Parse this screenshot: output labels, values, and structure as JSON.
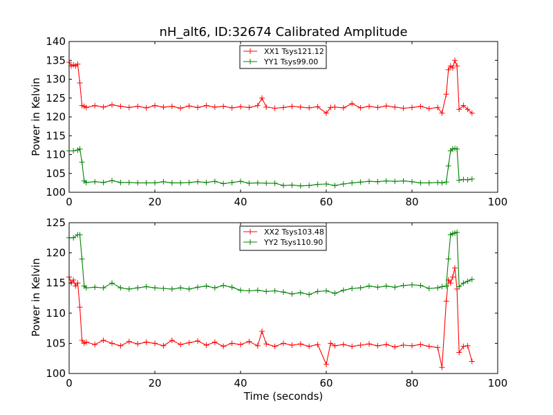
{
  "chart_data": [
    {
      "type": "line",
      "title": "nH_alt6, ID:32674 Calibrated Amplitude",
      "xlabel": "",
      "ylabel": "Power in Kelvin",
      "xlim": [
        0,
        100
      ],
      "ylim": [
        100,
        140
      ],
      "x_ticks": [
        "0",
        "20",
        "40",
        "60",
        "80",
        "100"
      ],
      "y_ticks": [
        "100",
        "105",
        "110",
        "115",
        "120",
        "125",
        "130",
        "135",
        "140"
      ],
      "legend_position": "top-center",
      "marker": "+",
      "series": [
        {
          "name": "XX1 Tsys121.12",
          "color": "#ff0000",
          "x": [
            0,
            0.5,
            1,
            1.5,
            2,
            2.5,
            3,
            3.5,
            4,
            6,
            8,
            10,
            12,
            14,
            16,
            18,
            20,
            22,
            24,
            26,
            28,
            30,
            32,
            34,
            36,
            38,
            40,
            42,
            44,
            45,
            46,
            48,
            50,
            52,
            54,
            56,
            58,
            60,
            61,
            62,
            64,
            66,
            68,
            70,
            72,
            74,
            76,
            78,
            80,
            82,
            84,
            86,
            87,
            88,
            88.5,
            89,
            89.5,
            90,
            90.5,
            91,
            92,
            93,
            94
          ],
          "y": [
            134.5,
            133.5,
            133.8,
            133.5,
            134,
            129,
            123,
            122.8,
            122.5,
            123,
            122.6,
            123.2,
            122.8,
            122.5,
            122.8,
            122.4,
            123,
            122.6,
            122.8,
            122.3,
            122.9,
            122.5,
            123,
            122.6,
            122.8,
            122.4,
            122.7,
            122.5,
            123,
            125,
            122.6,
            122.3,
            122.5,
            122.8,
            122.6,
            122.4,
            122.7,
            121,
            122.5,
            122.6,
            122.4,
            123.5,
            122.4,
            122.8,
            122.5,
            122.9,
            122.6,
            122.3,
            122.5,
            122.8,
            122.2,
            122.5,
            121,
            126,
            132.5,
            133.5,
            133,
            135,
            133.5,
            122,
            123,
            122,
            121
          ]
        },
        {
          "name": "YY1 Tsys99.00",
          "color": "#008000",
          "x": [
            0,
            1,
            2,
            2.5,
            3,
            3.5,
            4,
            6,
            8,
            10,
            12,
            14,
            16,
            18,
            20,
            22,
            24,
            26,
            28,
            30,
            32,
            34,
            36,
            38,
            40,
            42,
            44,
            46,
            48,
            50,
            52,
            54,
            56,
            58,
            60,
            62,
            64,
            66,
            68,
            70,
            72,
            74,
            76,
            78,
            80,
            82,
            84,
            86,
            87,
            88,
            88.5,
            89,
            89.5,
            90,
            90.5,
            91,
            92,
            93,
            94
          ],
          "y": [
            111,
            111,
            111.2,
            111.5,
            108,
            103,
            102.6,
            102.8,
            102.6,
            103.1,
            102.6,
            102.6,
            102.5,
            102.5,
            102.5,
            102.8,
            102.5,
            102.5,
            102.6,
            102.8,
            102.6,
            102.9,
            102.3,
            102.6,
            102.9,
            102.4,
            102.5,
            102.4,
            102.4,
            101.8,
            101.9,
            101.7,
            101.8,
            102.1,
            102.2,
            101.8,
            102.2,
            102.5,
            102.7,
            102.9,
            102.8,
            103,
            102.9,
            103,
            102.8,
            102.5,
            102.5,
            102.6,
            102.5,
            102.7,
            107,
            111,
            111.5,
            111.6,
            111.5,
            103.2,
            103.4,
            103.3,
            103.5
          ]
        }
      ]
    },
    {
      "type": "line",
      "title": "",
      "xlabel": "Time (seconds)",
      "ylabel": "Power in Kelvin",
      "xlim": [
        0,
        100
      ],
      "ylim": [
        100,
        125
      ],
      "x_ticks": [
        "0",
        "20",
        "40",
        "60",
        "80",
        "100"
      ],
      "y_ticks": [
        "100",
        "105",
        "110",
        "115",
        "120",
        "125"
      ],
      "legend_position": "top-center",
      "marker": "+",
      "series": [
        {
          "name": "XX2 Tsys103.48",
          "color": "#ff0000",
          "x": [
            0,
            0.5,
            1,
            1.5,
            2,
            2.5,
            3,
            3.5,
            4,
            6,
            8,
            10,
            12,
            14,
            16,
            18,
            20,
            22,
            24,
            26,
            28,
            30,
            32,
            34,
            36,
            38,
            40,
            42,
            44,
            45,
            46,
            48,
            50,
            52,
            54,
            56,
            58,
            60,
            61,
            62,
            64,
            66,
            68,
            70,
            72,
            74,
            76,
            78,
            80,
            82,
            84,
            86,
            87,
            88,
            88.5,
            89,
            89.5,
            90,
            90.5,
            91,
            92,
            93,
            94
          ],
          "y": [
            116,
            115,
            115.5,
            114.5,
            115,
            111,
            105.5,
            105,
            105.2,
            104.8,
            105.5,
            105,
            104.6,
            105.3,
            104.9,
            105.2,
            105,
            104.6,
            105.5,
            104.8,
            105.1,
            105.4,
            104.7,
            105.2,
            104.5,
            105,
            104.8,
            105.3,
            104.6,
            107,
            104.9,
            104.5,
            105,
            104.7,
            104.9,
            104.5,
            104.8,
            101.5,
            105,
            104.6,
            104.8,
            104.5,
            104.7,
            104.9,
            104.6,
            104.8,
            104.4,
            104.7,
            104.6,
            104.8,
            104.5,
            104.3,
            101,
            112,
            115.5,
            115,
            116,
            117.5,
            114,
            103.5,
            104.5,
            104.6,
            102
          ]
        },
        {
          "name": "YY2 Tsys110.90",
          "color": "#008000",
          "x": [
            0,
            1,
            2,
            2.5,
            3,
            3.5,
            4,
            6,
            8,
            10,
            12,
            14,
            16,
            18,
            20,
            22,
            24,
            26,
            28,
            30,
            32,
            34,
            36,
            38,
            40,
            42,
            44,
            46,
            48,
            50,
            52,
            54,
            56,
            58,
            60,
            62,
            64,
            66,
            68,
            70,
            72,
            74,
            76,
            78,
            80,
            82,
            84,
            86,
            87,
            88,
            88.5,
            89,
            89.5,
            90,
            90.5,
            91,
            92,
            93,
            94
          ],
          "y": [
            122.5,
            122.5,
            123,
            123,
            119,
            114.5,
            114.2,
            114.3,
            114.2,
            115,
            114.2,
            114,
            114.2,
            114.4,
            114.2,
            114.1,
            114,
            114.2,
            114,
            114.3,
            114.5,
            114.2,
            114.6,
            114.3,
            113.8,
            113.7,
            113.8,
            113.6,
            113.7,
            113.5,
            113.2,
            113.4,
            113.1,
            113.6,
            113.7,
            113.3,
            113.8,
            114.1,
            114.2,
            114.5,
            114.3,
            114.5,
            114.3,
            114.6,
            114.7,
            114.6,
            114.1,
            114.2,
            114.4,
            114.5,
            119,
            123,
            123.2,
            123.3,
            123.4,
            114.4,
            115,
            115.3,
            115.6
          ]
        }
      ]
    }
  ]
}
